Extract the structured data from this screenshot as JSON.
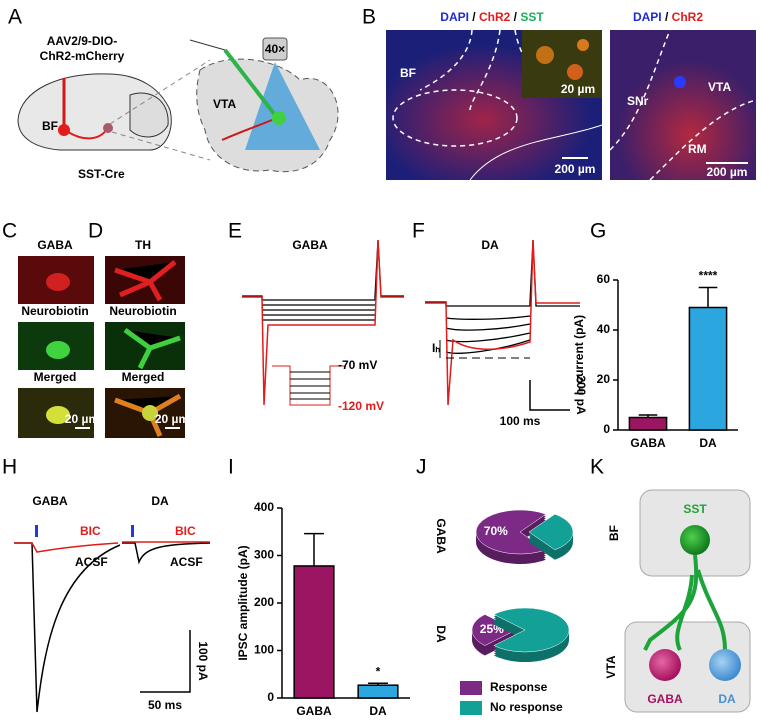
{
  "panels": {
    "labels": [
      "A",
      "B",
      "C",
      "D",
      "E",
      "F",
      "G",
      "H",
      "I",
      "J",
      "K"
    ],
    "a": {
      "virus": [
        "AAV2/9-DIO-",
        "ChR2-mCherry"
      ],
      "region": "BF",
      "mouse": "SST-Cre",
      "slice": "VTA",
      "objective": "40×"
    },
    "b": {
      "left": {
        "stains": [
          "DAPI",
          "ChR2",
          "SST"
        ],
        "separator": "/",
        "region": "BF",
        "inset_scale": "20 µm",
        "scale": "200 µm"
      },
      "right": {
        "stains": [
          "DAPI",
          "ChR2"
        ],
        "separator": "/",
        "region": "VTA",
        "subregions": [
          "SNr",
          "RM"
        ],
        "scale": "200 µm"
      }
    },
    "c": {
      "rows": [
        "GABA",
        "Neurobiotin",
        "Merged"
      ],
      "scale": "20 µm"
    },
    "d": {
      "rows": [
        "TH",
        "Neurobiotin",
        "Merged"
      ],
      "scale": "20 µm"
    },
    "e": {
      "title": "GABA",
      "protocol": [
        "-70 mV",
        "-120 mV"
      ]
    },
    "f": {
      "title": "DA",
      "marker": "Iₕ",
      "scale": [
        "200 pA",
        "100 ms"
      ]
    },
    "h": {
      "titles": [
        "GABA",
        "DA"
      ],
      "traces": [
        "BIC",
        "ACSF"
      ],
      "scale": [
        "100 pA",
        "50 ms"
      ]
    },
    "k": {
      "regions": [
        "BF",
        "VTA"
      ],
      "cells": [
        "SST",
        "GABA",
        "DA"
      ]
    }
  },
  "chart_data": [
    {
      "type": "bar",
      "ylabel": "Iₕ current (pA)",
      "categories": [
        "GABA",
        "DA"
      ],
      "values": [
        5,
        49
      ],
      "errors": [
        1,
        8
      ],
      "colors": [
        "#9b1562",
        "#2ba6df"
      ],
      "significance": [
        null,
        "****"
      ],
      "ylim": [
        0,
        60
      ],
      "yticks": [
        0,
        20,
        40,
        60
      ]
    },
    {
      "type": "bar",
      "ylabel": "IPSC amplitude (pA)",
      "categories": [
        "GABA",
        "DA"
      ],
      "values": [
        278,
        27
      ],
      "errors": [
        68,
        4
      ],
      "colors": [
        "#9b1562",
        "#2ba6df"
      ],
      "significance": [
        null,
        "*"
      ],
      "ylim": [
        0,
        400
      ],
      "yticks": [
        0,
        100,
        200,
        300,
        400
      ]
    },
    {
      "type": "pie",
      "categories": [
        "Response",
        "No response"
      ],
      "colors": [
        "#7d2a87",
        "#13a096"
      ],
      "series": [
        {
          "name": "GABA",
          "values": [
            70,
            30
          ],
          "value_labels": [
            "70%",
            null
          ]
        },
        {
          "name": "DA",
          "values": [
            25,
            75
          ],
          "value_labels": [
            "25%",
            null
          ]
        }
      ]
    }
  ]
}
